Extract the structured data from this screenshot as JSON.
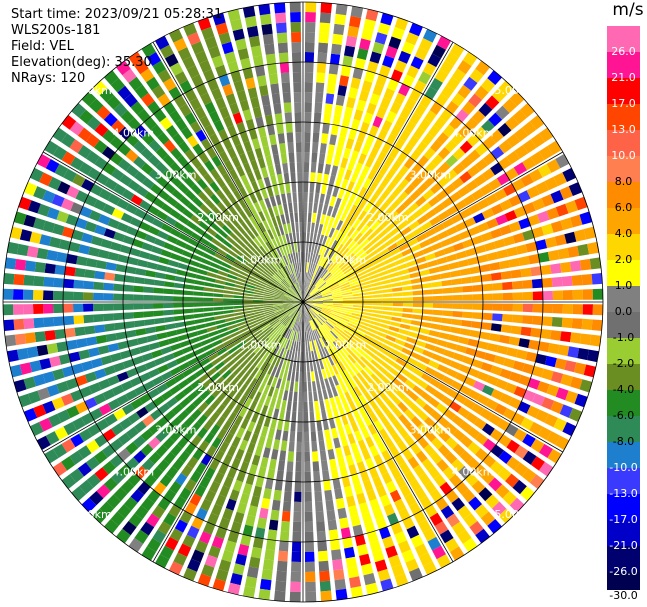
{
  "header": {
    "start_time": "Start time: 2023/09/21 05:28:31",
    "instrument": "WLS200s-181",
    "field": "Field: VEL",
    "elevation": "Elevation(deg): 35.30",
    "nrays": "NRays: 120"
  },
  "chart_data": {
    "type": "ppi-polar-heatmap",
    "field": "VEL",
    "units": "m/s",
    "n_rays": 120,
    "elevation_deg": 35.3,
    "max_range_km": 5.0,
    "range_ring_labels": [
      "1.00km",
      "2.00km",
      "3.00km",
      "4.00km",
      "5.00km"
    ],
    "range_rings_km": [
      1,
      2,
      3,
      4,
      5
    ],
    "colorbar": {
      "unit": "m/s",
      "bounds": [
        -30,
        -26,
        -21,
        -17,
        -13,
        -10,
        -8,
        -6,
        -4,
        -2,
        -1,
        0,
        1,
        2,
        4,
        6,
        8,
        10,
        13,
        17,
        21,
        26,
        30
      ],
      "tick_labels": [
        "26.0",
        "21.0",
        "17.0",
        "13.0",
        "10.0",
        "8.0",
        "6.0",
        "4.0",
        "2.0",
        "1.0",
        "0.0",
        "-1.0",
        "-2.0",
        "-4.0",
        "-6.0",
        "-8.0",
        "-10.0",
        "-13.0",
        "-17.0",
        "-21.0",
        "-26.0",
        "-30.0"
      ],
      "colors": [
        "#000050",
        "#00006e",
        "#0000c8",
        "#0000ff",
        "#3a3aff",
        "#1f7fcf",
        "#2e8b57",
        "#228b22",
        "#6b8e23",
        "#9acd32",
        "#707070",
        "#808080",
        "#ffff00",
        "#ffd700",
        "#ffa500",
        "#ff8c00",
        "#ff7f50",
        "#ff6347",
        "#ff4500",
        "#ff0000",
        "#ff1493",
        "#ff69b4"
      ]
    },
    "wind_pattern": {
      "approach_side": "east",
      "approach_velocity_ms": [
        1,
        6
      ],
      "recede_side": "west",
      "recede_velocity_ms": [
        -8,
        -2
      ],
      "noise_begins_km": 3.0
    }
  }
}
